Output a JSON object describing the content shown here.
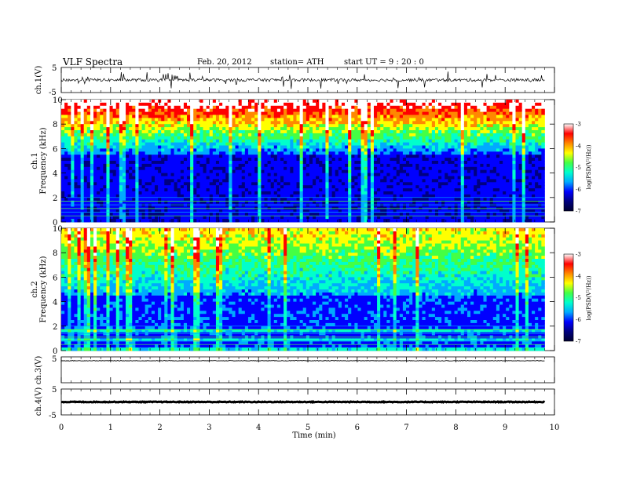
{
  "header": {
    "title": "VLF  Spectra",
    "date": "Feb. 20, 2012",
    "station": "station= ATH",
    "start": "start  UT =   9 : 20 : 0"
  },
  "chart_data": [
    {
      "type": "line",
      "panel": "ch1-waveform",
      "ylabel": "ch.1(V)",
      "yticks": [
        "5",
        "-5"
      ],
      "ylim": [
        -5,
        5
      ],
      "xlim": [
        0,
        10
      ],
      "baseline": 0,
      "trace_end": 9.8
    },
    {
      "type": "heatmap",
      "panel": "ch1-spectrogram",
      "ylabel": "ch.1",
      "ylabel2": "Frequency  (kHz)",
      "yticks": [
        "0",
        "2",
        "4",
        "6",
        "8",
        "10"
      ],
      "ylim": [
        0,
        10
      ],
      "xlim": [
        0,
        10
      ],
      "data_end": 9.8,
      "colorbar": {
        "label": "log(PSD(V²/Hz))",
        "ticks": [
          "-3",
          "-4",
          "-5",
          "-6",
          "-7"
        ],
        "range": [
          -7,
          -3
        ]
      }
    },
    {
      "type": "heatmap",
      "panel": "ch2-spectrogram",
      "ylabel": "ch.2",
      "ylabel2": "Frequency  (kHz)",
      "yticks": [
        "0",
        "2",
        "4",
        "6",
        "8",
        "10"
      ],
      "ylim": [
        0,
        10
      ],
      "xlim": [
        0,
        10
      ],
      "data_end": 9.8,
      "colorbar": {
        "label": "log(PSD(V²/Hz))",
        "ticks": [
          "-3",
          "-4",
          "-5",
          "-6",
          "-7"
        ],
        "range": [
          -7,
          -3
        ]
      }
    },
    {
      "type": "line",
      "panel": "ch3-waveform",
      "ylabel": "ch.3(V)",
      "yticks": [
        "5"
      ],
      "ylim": [
        -5,
        5
      ],
      "xlim": [
        0,
        10
      ],
      "baseline": 3.5,
      "trace_end": 9.8
    },
    {
      "type": "line",
      "panel": "ch4-waveform",
      "ylabel": "ch.4(V)",
      "yticks": [
        "5",
        "-5"
      ],
      "ylim": [
        -5,
        5
      ],
      "xlim": [
        0,
        10
      ],
      "baseline": 0,
      "trace_end": 9.8
    }
  ],
  "xaxis": {
    "label": "Time  (min)",
    "ticks": [
      "0",
      "1",
      "2",
      "3",
      "4",
      "5",
      "6",
      "7",
      "8",
      "9",
      "10"
    ]
  },
  "colors": {
    "colormap": [
      "#000030",
      "#000080",
      "#0000ff",
      "#00aaff",
      "#00ffcc",
      "#44ff44",
      "#ffff00",
      "#ff8800",
      "#ff0000",
      "#ffffff"
    ]
  }
}
